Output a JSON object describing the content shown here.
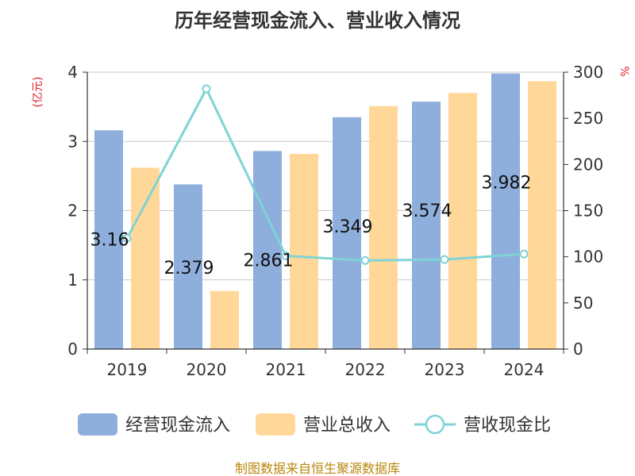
{
  "chart_data": {
    "type": "bar",
    "title": "历年经营现金流入、营业收入情况",
    "categories": [
      "2019",
      "2020",
      "2021",
      "2022",
      "2023",
      "2024"
    ],
    "series": [
      {
        "name": "经营现金流入",
        "type": "bar",
        "axis": "left",
        "color": "#8eaedb",
        "values": [
          3.16,
          2.379,
          2.861,
          3.349,
          3.574,
          3.982
        ],
        "labels": [
          "3.16",
          "2.379",
          "2.861",
          "3.349",
          "3.574",
          "3.982"
        ]
      },
      {
        "name": "营业总收入",
        "type": "bar",
        "axis": "left",
        "color": "#ffd899",
        "values": [
          2.62,
          0.84,
          2.82,
          3.51,
          3.7,
          3.87
        ]
      },
      {
        "name": "营收现金比",
        "type": "line",
        "axis": "right",
        "color": "#7fd3d6",
        "values": [
          120,
          282,
          101,
          96,
          97,
          103
        ]
      }
    ],
    "yaxis_left": {
      "label": "(亿元)",
      "min": 0,
      "max": 4,
      "ticks": [
        "0",
        "1",
        "2",
        "3",
        "4"
      ]
    },
    "yaxis_right": {
      "label": "%",
      "min": 0,
      "max": 300,
      "ticks": [
        "0",
        "50",
        "100",
        "150",
        "200",
        "250",
        "300"
      ]
    },
    "grid": true,
    "legend_position": "bottom"
  },
  "source": "制图数据来自恒生聚源数据库"
}
